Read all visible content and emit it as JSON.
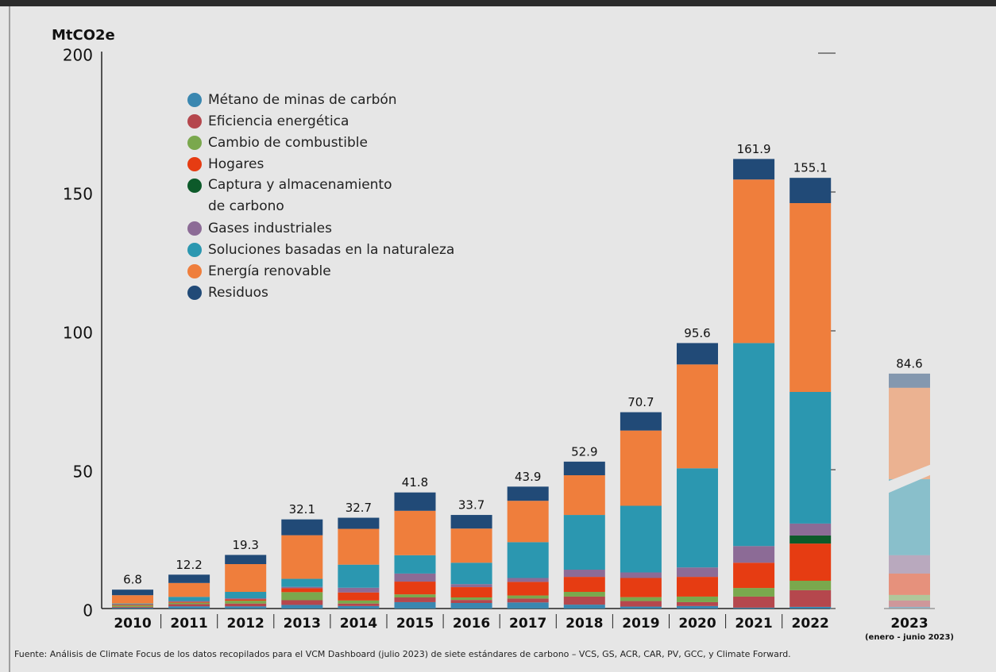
{
  "chart_data": {
    "type": "stacked-bar",
    "y_label": "MtCO2e",
    "categories": [
      "2010",
      "2011",
      "2012",
      "2013",
      "2014",
      "2015",
      "2016",
      "2017",
      "2018",
      "2019",
      "2020",
      "2021",
      "2022",
      "2023"
    ],
    "partial_note": "(enero - junio 2023)",
    "faded_categories": [
      "2023"
    ],
    "series": [
      {
        "name": "Métano de minas de carbón",
        "color": "#3a87b0",
        "values": [
          0.3,
          0.8,
          0.8,
          1.3,
          0.9,
          2.3,
          2.0,
          2.2,
          1.4,
          0.7,
          0.9,
          0.3,
          0.6,
          0.6
        ]
      },
      {
        "name": "Eficiencia energética",
        "color": "#b5474d",
        "values": [
          0.3,
          0.8,
          1.0,
          1.7,
          0.9,
          1.7,
          1.1,
          1.4,
          2.9,
          2.0,
          1.4,
          4.0,
          6.0,
          2.3
        ]
      },
      {
        "name": "Cambio de combustible",
        "color": "#7aa84d",
        "values": [
          0.5,
          0.5,
          1.0,
          2.9,
          1.1,
          1.1,
          0.9,
          1.1,
          1.7,
          1.4,
          2.0,
          3.1,
          3.4,
          2.0
        ]
      },
      {
        "name": "Hogares",
        "color": "#e63c12",
        "values": [
          0.3,
          0.3,
          0.5,
          1.4,
          2.9,
          4.6,
          3.7,
          4.9,
          5.4,
          6.9,
          7.1,
          9.1,
          13.4,
          7.7
        ]
      },
      {
        "name": "Captura y almacenamiento de carbono",
        "color": "#0d5a2a",
        "values": [
          0,
          0,
          0,
          0,
          0,
          0,
          0,
          0,
          0,
          0,
          0,
          0,
          2.9,
          0
        ]
      },
      {
        "name": "Gases industriales",
        "color": "#8c6b96",
        "values": [
          0.1,
          0.3,
          0.4,
          0.5,
          1.7,
          2.9,
          1.1,
          1.4,
          2.6,
          2.0,
          3.4,
          6.0,
          4.3,
          6.6
        ]
      },
      {
        "name": "Soluciones basadas en la naturaleza",
        "color": "#2b97b0",
        "values": [
          0.3,
          1.5,
          2.3,
          2.9,
          8.3,
          6.6,
          7.7,
          12.9,
          19.7,
          24.0,
          35.7,
          73.1,
          47.4,
          27.4
        ]
      },
      {
        "name": "Energía renovable",
        "color": "#ef7e3c",
        "values": [
          3.0,
          5.0,
          10.0,
          15.7,
          12.9,
          16.0,
          12.3,
          14.9,
          14.3,
          27.1,
          37.4,
          58.9,
          68.0,
          32.9
        ]
      },
      {
        "name": "Residuos",
        "color": "#214a77",
        "values": [
          2.0,
          3.0,
          3.3,
          5.7,
          4.0,
          6.6,
          4.9,
          5.1,
          4.9,
          6.6,
          7.7,
          7.4,
          9.1,
          5.1
        ]
      }
    ],
    "totals": [
      6.8,
      12.2,
      19.3,
      32.1,
      32.7,
      41.8,
      33.7,
      43.9,
      52.9,
      70.7,
      95.6,
      161.9,
      155.1,
      84.6
    ],
    "ylim": [
      0,
      200
    ],
    "yticks": [
      0,
      50,
      100,
      150,
      200
    ],
    "source": "Fuente: Análisis de Climate Focus de los datos recopilados para el VCM Dashboard (julio 2023) de siete estándares de carbono – VCS, GS, ACR, CAR, PV, GCC, y Climate Forward."
  }
}
